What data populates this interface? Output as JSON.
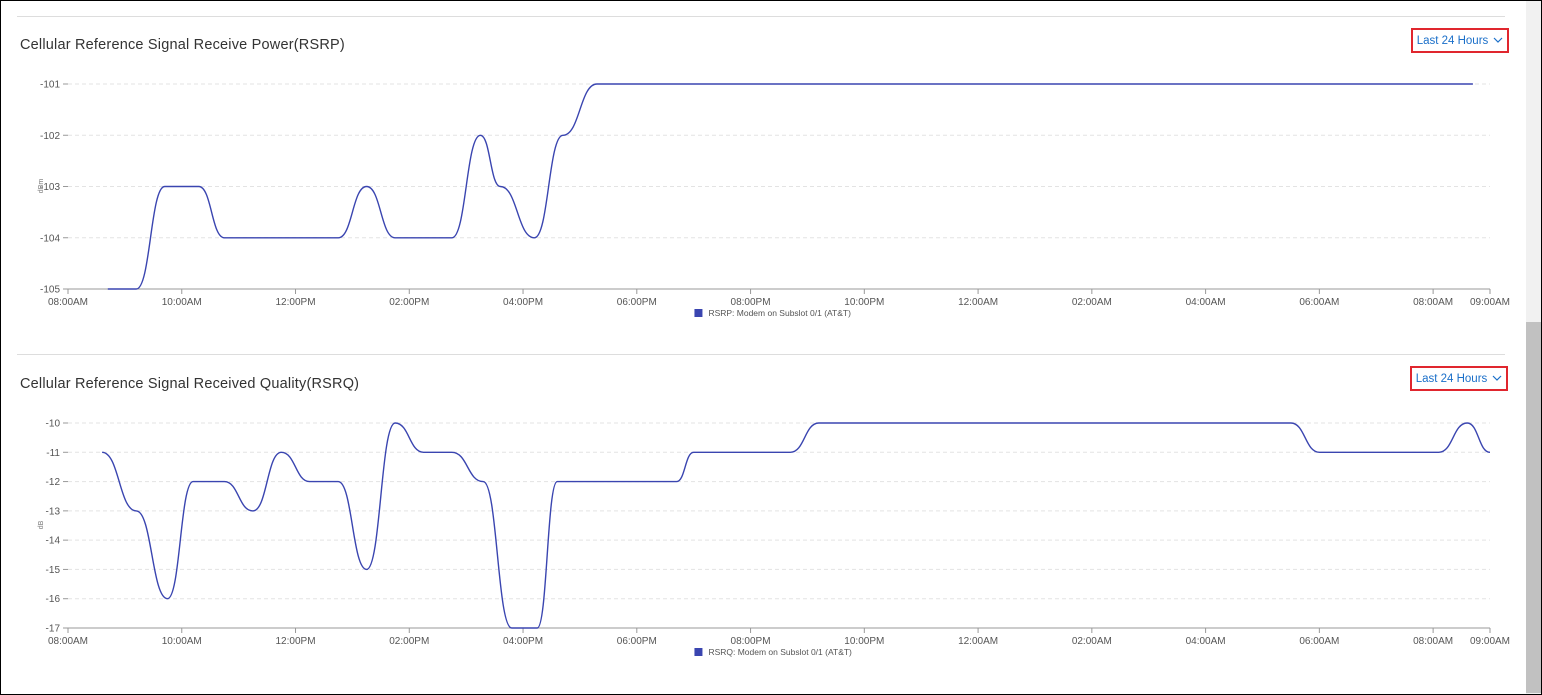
{
  "panels": [
    {
      "title": "Cellular Reference Signal Receive Power(RSRP)",
      "range_label": "Last 24 Hours",
      "chart_data": {
        "type": "line",
        "ylabel": "dBm",
        "ylim": [
          -105,
          -101
        ],
        "yticks": [
          "-101",
          "-102",
          "-103",
          "-104",
          "-105"
        ],
        "xlim_hours": [
          8,
          33
        ],
        "xticks": [
          "08:00AM",
          "10:00AM",
          "12:00PM",
          "02:00PM",
          "04:00PM",
          "06:00PM",
          "08:00PM",
          "10:00PM",
          "12:00AM",
          "02:00AM",
          "04:00AM",
          "06:00AM",
          "08:00AM",
          "09:00AM"
        ],
        "grid": true,
        "legend_position": "bottom",
        "series": [
          {
            "name": "RSRP: Modem on Subslot 0/1 (AT&T)",
            "color": "#3a45b0",
            "x_hours": [
              8.7,
              9.2,
              9.7,
              10.3,
              10.75,
              12.5,
              12.75,
              13.25,
              13.75,
              14.2,
              14.75,
              15.25,
              15.6,
              16.2,
              16.7,
              17.3,
              32.7
            ],
            "values": [
              -105,
              -105,
              -103,
              -103,
              -104,
              -104,
              -104,
              -103,
              -104,
              -104,
              -104,
              -102,
              -103,
              -104,
              -102,
              -101,
              -101
            ]
          }
        ]
      }
    },
    {
      "title": "Cellular Reference Signal Received Quality(RSRQ)",
      "range_label": "Last 24 Hours",
      "chart_data": {
        "type": "line",
        "ylabel": "dB",
        "ylim": [
          -17,
          -10
        ],
        "yticks": [
          "-10",
          "-11",
          "-12",
          "-13",
          "-14",
          "-15",
          "-16",
          "-17"
        ],
        "xlim_hours": [
          8,
          33
        ],
        "xticks": [
          "08:00AM",
          "10:00AM",
          "12:00PM",
          "02:00PM",
          "04:00PM",
          "06:00PM",
          "08:00PM",
          "10:00PM",
          "12:00AM",
          "02:00AM",
          "04:00AM",
          "06:00AM",
          "08:00AM",
          "09:00AM"
        ],
        "grid": true,
        "legend_position": "bottom",
        "series": [
          {
            "name": "RSRQ: Modem on Subslot 0/1 (AT&T)",
            "color": "#3a45b0",
            "x_hours": [
              8.6,
              9.2,
              9.75,
              10.2,
              10.75,
              11.25,
              11.75,
              12.25,
              12.75,
              13.25,
              13.75,
              14.25,
              14.75,
              15.3,
              15.8,
              16.25,
              16.6,
              18.7,
              19.0,
              20.7,
              21.2,
              29.5,
              30.0,
              32.1,
              32.6,
              33.0
            ],
            "values": [
              -11,
              -13,
              -16,
              -12,
              -12,
              -13,
              -11,
              -12,
              -12,
              -15,
              -10,
              -11,
              -11,
              -12,
              -17,
              -17,
              -12,
              -12,
              -11,
              -11,
              -10,
              -10,
              -11,
              -11,
              -10,
              -11
            ]
          }
        ]
      }
    }
  ]
}
